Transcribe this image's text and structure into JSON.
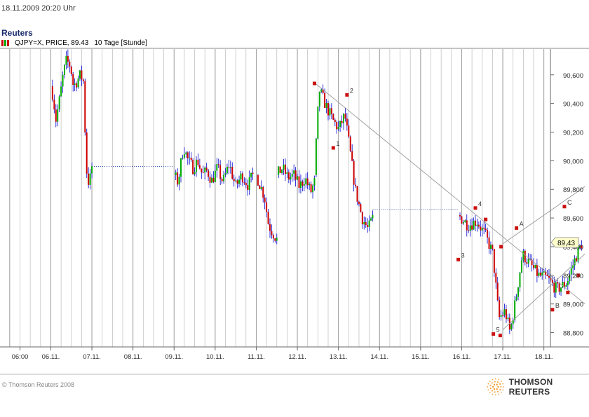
{
  "header": {
    "date_line": "18.11.2009  20:20 Uhr",
    "brand": "Reuters",
    "instrument": "QJPY=X, PRICE, 89.43",
    "period": "10 Tage [Stunde]"
  },
  "footer": {
    "copyright": "© Thomson Reuters 2008",
    "logo_text": "THOMSON REUTERS"
  },
  "colors": {
    "up": "#00aa00",
    "down": "#cc0000",
    "wick": "#0000cc",
    "marker": "#cc1111",
    "line": "#999999",
    "grid": "#cccccc",
    "price_tag": "#ffffcc"
  },
  "chart_data": {
    "type": "candlestick",
    "y_range": [
      88.7,
      90.78
    ],
    "ytick_labels": [
      "88,800",
      "89,000",
      "89,200",
      "89,400",
      "89,600",
      "89,800",
      "90,000",
      "90,200",
      "90,400",
      "90,600"
    ],
    "ytick_values": [
      88.8,
      89.0,
      89.2,
      89.4,
      89.6,
      89.8,
      90.0,
      90.2,
      90.4,
      90.6
    ],
    "xtick_labels": [
      "06:00",
      "06.11.",
      "07.11.",
      "08.11.",
      "09.11.",
      "10.11.",
      "11.11.",
      "12.11.",
      "13.11.",
      "14.11.",
      "15.11.",
      "16.11.",
      "17.11.",
      "18.11."
    ],
    "current_price_label": "89,43",
    "current_price": 89.43,
    "segments": [
      {
        "from": "06.11. 00:00",
        "to": "07.11. 00:00",
        "waypoints": [
          [
            0,
            90.52
          ],
          [
            0.06,
            90.45
          ],
          [
            0.12,
            90.28
          ],
          [
            0.22,
            90.44
          ],
          [
            0.3,
            90.6
          ],
          [
            0.38,
            90.7
          ],
          [
            0.48,
            90.66
          ],
          [
            0.55,
            90.52
          ],
          [
            0.62,
            90.55
          ],
          [
            0.72,
            90.6
          ],
          [
            0.8,
            90.55
          ],
          [
            0.86,
            89.95
          ],
          [
            0.92,
            89.85
          ],
          [
            0.96,
            89.88
          ],
          [
            1,
            89.96
          ]
        ]
      },
      {
        "from": "09.11. 00:00",
        "to": "10.11. 22:00",
        "waypoints": [
          [
            0,
            89.9
          ],
          [
            0.05,
            89.85
          ],
          [
            0.12,
            90.1
          ],
          [
            0.18,
            90.0
          ],
          [
            0.24,
            89.95
          ],
          [
            0.3,
            90.0
          ],
          [
            0.36,
            89.9
          ],
          [
            0.42,
            89.93
          ],
          [
            0.48,
            89.86
          ],
          [
            0.55,
            89.95
          ],
          [
            0.62,
            89.85
          ],
          [
            0.7,
            89.98
          ],
          [
            0.78,
            89.82
          ],
          [
            0.86,
            89.9
          ],
          [
            0.94,
            89.83
          ],
          [
            1,
            89.9
          ]
        ]
      },
      {
        "from": "11.11. 00:00",
        "to": "11.11. 12:00",
        "waypoints": [
          [
            0,
            89.9
          ],
          [
            0.4,
            89.75
          ],
          [
            0.6,
            89.55
          ],
          [
            1,
            89.45
          ]
        ]
      },
      {
        "from": "11.11. 12:00",
        "to": "12.11. 10:00",
        "waypoints": [
          [
            0,
            89.9
          ],
          [
            0.15,
            89.95
          ],
          [
            0.3,
            89.88
          ],
          [
            0.45,
            89.9
          ],
          [
            0.6,
            89.82
          ],
          [
            0.75,
            89.88
          ],
          [
            0.9,
            89.78
          ],
          [
            1,
            89.85
          ]
        ]
      },
      {
        "from": "12.11. 10:00",
        "to": "13.11. 20:00",
        "waypoints": [
          [
            0,
            89.9
          ],
          [
            0.08,
            90.5
          ],
          [
            0.2,
            90.38
          ],
          [
            0.32,
            90.28
          ],
          [
            0.42,
            90.22
          ],
          [
            0.52,
            90.32
          ],
          [
            0.6,
            90.1
          ],
          [
            0.7,
            89.8
          ],
          [
            0.82,
            89.6
          ],
          [
            0.92,
            89.52
          ],
          [
            1,
            89.6
          ]
        ]
      },
      {
        "from": "15.11. 22:00",
        "to": "18.11. 22:00",
        "waypoints": [
          [
            0,
            89.62
          ],
          [
            0.08,
            89.55
          ],
          [
            0.15,
            89.58
          ],
          [
            0.22,
            89.48
          ],
          [
            0.28,
            89.35
          ],
          [
            0.33,
            88.9
          ],
          [
            0.38,
            88.95
          ],
          [
            0.42,
            88.8
          ],
          [
            0.47,
            89.05
          ],
          [
            0.52,
            89.35
          ],
          [
            0.58,
            89.28
          ],
          [
            0.65,
            89.2
          ],
          [
            0.72,
            89.18
          ],
          [
            0.8,
            89.1
          ],
          [
            0.88,
            89.15
          ],
          [
            0.95,
            89.32
          ],
          [
            1,
            89.42
          ]
        ]
      }
    ],
    "gaps": [
      {
        "from": "07.11. 00:00",
        "to": "09.11. 00:00",
        "value": 89.96
      },
      {
        "from": "13.11. 20:00",
        "to": "15.11. 22:00",
        "value": 89.66
      }
    ],
    "annotations": {
      "trendlines": [
        {
          "from": [
            "12.11. 10:30",
            90.54
          ],
          "to": [
            "19.11. 00:00",
            89.0
          ]
        },
        {
          "from": [
            "17.11. 00:00",
            88.82
          ],
          "to": [
            "19.11. 00:00",
            89.35
          ]
        },
        {
          "from": [
            "17.11. 00:00",
            89.42
          ],
          "to": [
            "19.11. 00:00",
            89.82
          ]
        }
      ],
      "points": [
        {
          "label": "",
          "at": [
            "12.11. 10:00",
            90.54
          ]
        },
        {
          "label": "1",
          "at": [
            "12.11. 21:00",
            90.09
          ]
        },
        {
          "label": "2",
          "at": [
            "13.11. 05:00",
            90.46
          ]
        },
        {
          "label": "3",
          "at": [
            "15.11. 22:00",
            89.31
          ]
        },
        {
          "label": "4",
          "at": [
            "16.11. 08:00",
            89.67
          ]
        },
        {
          "label": "",
          "at": [
            "16.11. 14:00",
            89.59
          ]
        },
        {
          "label": "5",
          "at": [
            "16.11. 18:30",
            88.79
          ]
        },
        {
          "label": "",
          "at": [
            "16.11. 22:30",
            88.78
          ]
        },
        {
          "label": "",
          "at": [
            "16.11. 23:00",
            89.4
          ]
        },
        {
          "label": "A",
          "at": [
            "17.11. 08:00",
            89.53
          ]
        },
        {
          "label": "B",
          "at": [
            "18.11. 05:00",
            88.96
          ]
        },
        {
          "label": "C",
          "at": [
            "18.11. 12:00",
            89.68
          ]
        },
        {
          "label": "",
          "at": [
            "18.11. 14:00",
            89.08
          ]
        },
        {
          "label": "",
          "at": [
            "18.11. 20:00",
            89.2
          ]
        }
      ]
    }
  }
}
